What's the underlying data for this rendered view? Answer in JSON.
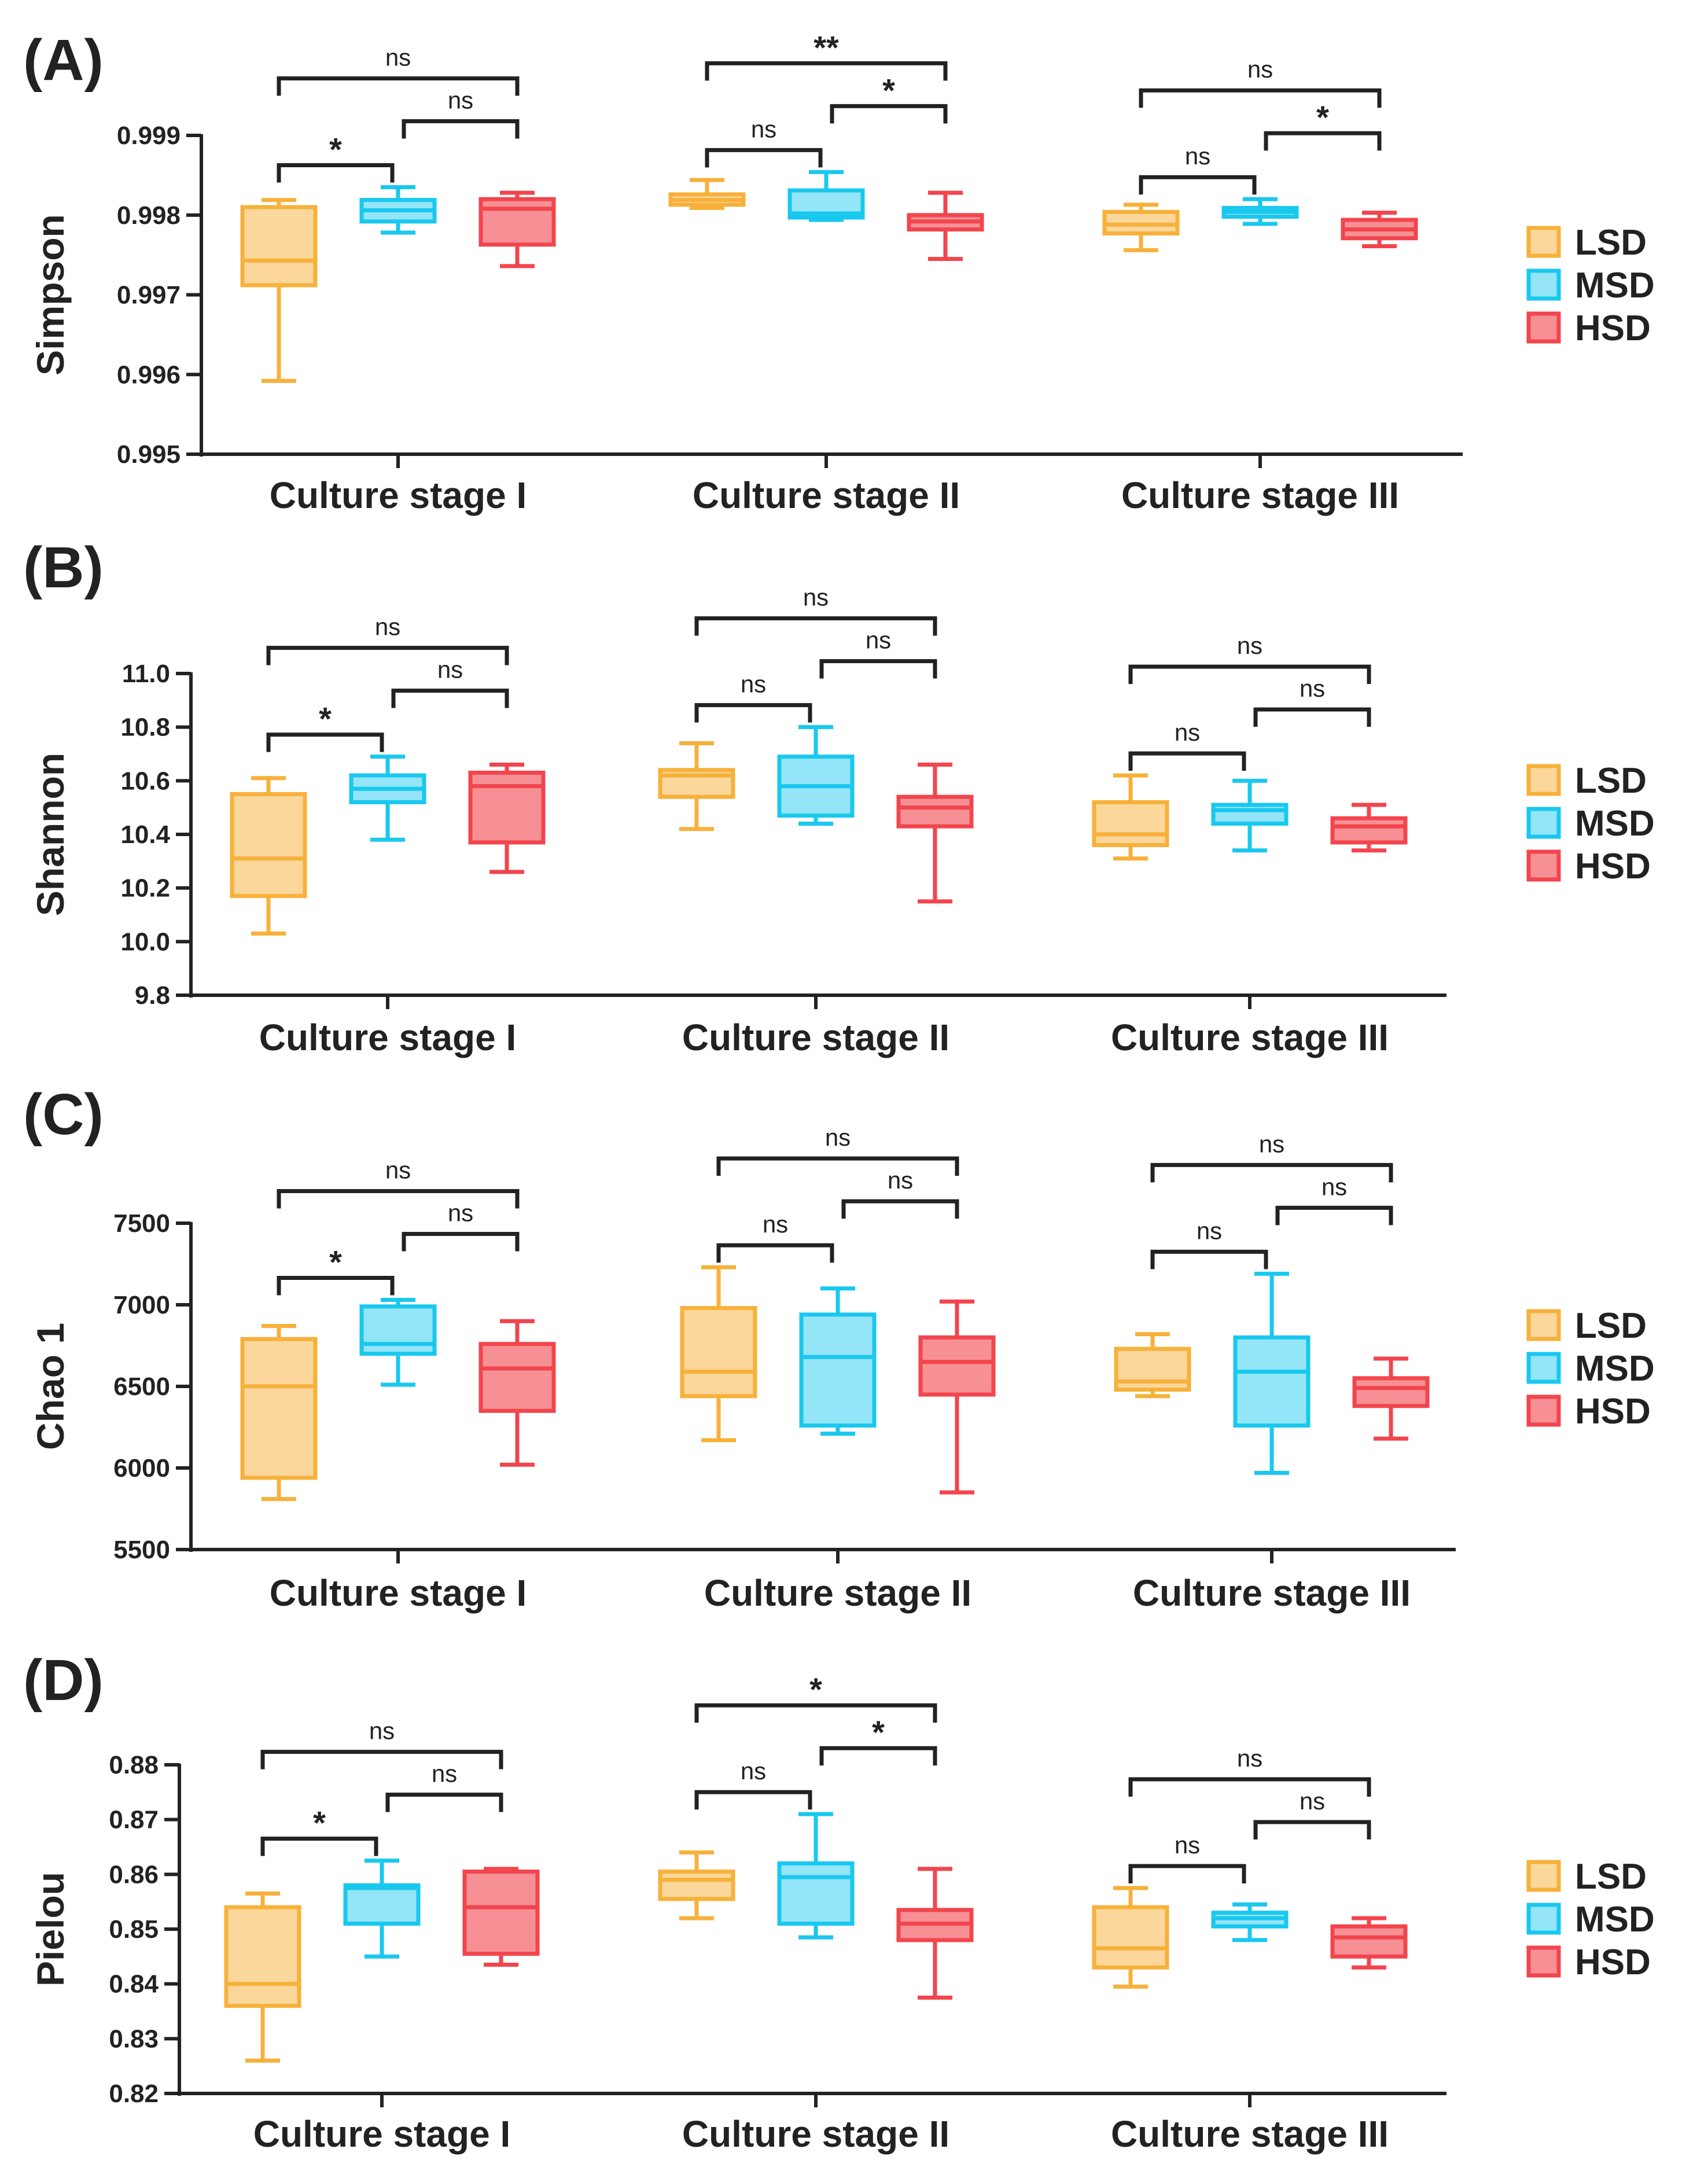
{
  "colors": {
    "LSD": {
      "stroke": "#f7b13a",
      "fill": "#fbd79b"
    },
    "MSD": {
      "stroke": "#19c8ee",
      "fill": "#93e5f7"
    },
    "HSD": {
      "stroke": "#f2454d",
      "fill": "#f79095"
    },
    "axis": "#222222"
  },
  "legend": [
    "LSD",
    "MSD",
    "HSD"
  ],
  "chart_data": [
    {
      "type": "box",
      "panel_label": "(A)",
      "ylabel": "Simpson",
      "ylim": [
        0.995,
        0.999
      ],
      "yticks": [
        0.995,
        0.996,
        0.997,
        0.998,
        0.999
      ],
      "ytick_labels": [
        "0.995",
        "0.996",
        "0.997",
        "0.998",
        "0.999"
      ],
      "categories": [
        "Culture stage I",
        "Culture stage II",
        "Culture stage III"
      ],
      "series": [
        {
          "name": "LSD",
          "boxes": [
            {
              "min": 0.99592,
              "q1": 0.99712,
              "median": 0.99743,
              "q3": 0.9981,
              "max": 0.99819
            },
            {
              "min": 0.99809,
              "q1": 0.99813,
              "median": 0.99819,
              "q3": 0.99826,
              "max": 0.99844
            },
            {
              "min": 0.99756,
              "q1": 0.99777,
              "median": 0.99788,
              "q3": 0.99804,
              "max": 0.99813
            }
          ]
        },
        {
          "name": "MSD",
          "boxes": [
            {
              "min": 0.99778,
              "q1": 0.99792,
              "median": 0.99806,
              "q3": 0.99819,
              "max": 0.99835
            },
            {
              "min": 0.99794,
              "q1": 0.99797,
              "median": 0.99802,
              "q3": 0.99831,
              "max": 0.99854
            },
            {
              "min": 0.99789,
              "q1": 0.99798,
              "median": 0.99804,
              "q3": 0.99809,
              "max": 0.9982
            }
          ]
        },
        {
          "name": "HSD",
          "boxes": [
            {
              "min": 0.99736,
              "q1": 0.99763,
              "median": 0.99808,
              "q3": 0.9982,
              "max": 0.99828
            },
            {
              "min": 0.99745,
              "q1": 0.99782,
              "median": 0.99792,
              "q3": 0.998,
              "max": 0.99828
            },
            {
              "min": 0.99761,
              "q1": 0.99771,
              "median": 0.99782,
              "q3": 0.99794,
              "max": 0.99803
            }
          ]
        }
      ],
      "brackets": [
        [
          {
            "from": 0,
            "to": 2,
            "label": "ns"
          },
          {
            "from": 1,
            "to": 2,
            "label": "ns"
          },
          {
            "from": 0,
            "to": 1,
            "label": "*"
          }
        ],
        [
          {
            "from": 0,
            "to": 2,
            "label": "**"
          },
          {
            "from": 1,
            "to": 2,
            "label": "*"
          },
          {
            "from": 0,
            "to": 1,
            "label": "ns"
          }
        ],
        [
          {
            "from": 0,
            "to": 2,
            "label": "ns"
          },
          {
            "from": 1,
            "to": 2,
            "label": "*"
          },
          {
            "from": 0,
            "to": 1,
            "label": "ns"
          }
        ]
      ]
    },
    {
      "type": "box",
      "panel_label": "(B)",
      "ylabel": "Shannon",
      "ylim": [
        9.8,
        11.0
      ],
      "yticks": [
        9.8,
        10.0,
        10.2,
        10.4,
        10.6,
        10.8,
        11.0
      ],
      "ytick_labels": [
        "9.8",
        "10.0",
        "10.2",
        "10.4",
        "10.6",
        "10.8",
        "11.0"
      ],
      "categories": [
        "Culture stage I",
        "Culture stage II",
        "Culture stage III"
      ],
      "series": [
        {
          "name": "LSD",
          "boxes": [
            {
              "min": 10.03,
              "q1": 10.17,
              "median": 10.31,
              "q3": 10.55,
              "max": 10.61
            },
            {
              "min": 10.42,
              "q1": 10.54,
              "median": 10.62,
              "q3": 10.64,
              "max": 10.74
            },
            {
              "min": 10.31,
              "q1": 10.36,
              "median": 10.4,
              "q3": 10.52,
              "max": 10.62
            }
          ]
        },
        {
          "name": "MSD",
          "boxes": [
            {
              "min": 10.38,
              "q1": 10.52,
              "median": 10.57,
              "q3": 10.62,
              "max": 10.69
            },
            {
              "min": 10.44,
              "q1": 10.47,
              "median": 10.58,
              "q3": 10.69,
              "max": 10.8
            },
            {
              "min": 10.34,
              "q1": 10.44,
              "median": 10.49,
              "q3": 10.51,
              "max": 10.6
            }
          ]
        },
        {
          "name": "HSD",
          "boxes": [
            {
              "min": 10.26,
              "q1": 10.37,
              "median": 10.58,
              "q3": 10.63,
              "max": 10.66
            },
            {
              "min": 10.15,
              "q1": 10.43,
              "median": 10.5,
              "q3": 10.54,
              "max": 10.66
            },
            {
              "min": 10.34,
              "q1": 10.37,
              "median": 10.43,
              "q3": 10.46,
              "max": 10.51
            }
          ]
        }
      ],
      "brackets": [
        [
          {
            "from": 0,
            "to": 2,
            "label": "ns"
          },
          {
            "from": 1,
            "to": 2,
            "label": "ns"
          },
          {
            "from": 0,
            "to": 1,
            "label": "*"
          }
        ],
        [
          {
            "from": 0,
            "to": 2,
            "label": "ns"
          },
          {
            "from": 1,
            "to": 2,
            "label": "ns"
          },
          {
            "from": 0,
            "to": 1,
            "label": "ns"
          }
        ],
        [
          {
            "from": 0,
            "to": 2,
            "label": "ns"
          },
          {
            "from": 1,
            "to": 2,
            "label": "ns"
          },
          {
            "from": 0,
            "to": 1,
            "label": "ns"
          }
        ]
      ]
    },
    {
      "type": "box",
      "panel_label": "(C)",
      "ylabel": "Chao 1",
      "ylim": [
        5500,
        7500
      ],
      "yticks": [
        5500,
        6000,
        6500,
        7000,
        7500
      ],
      "ytick_labels": [
        "5500",
        "6000",
        "6500",
        "7000",
        "7500"
      ],
      "categories": [
        "Culture stage I",
        "Culture stage II",
        "Culture stage III"
      ],
      "series": [
        {
          "name": "LSD",
          "boxes": [
            {
              "min": 5810,
              "q1": 5940,
              "median": 6500,
              "q3": 6790,
              "max": 6870
            },
            {
              "min": 6170,
              "q1": 6440,
              "median": 6590,
              "q3": 6980,
              "max": 7230
            },
            {
              "min": 6440,
              "q1": 6480,
              "median": 6530,
              "q3": 6730,
              "max": 6820
            }
          ]
        },
        {
          "name": "MSD",
          "boxes": [
            {
              "min": 6510,
              "q1": 6700,
              "median": 6760,
              "q3": 6990,
              "max": 7030
            },
            {
              "min": 6210,
              "q1": 6260,
              "median": 6680,
              "q3": 6940,
              "max": 7100
            },
            {
              "min": 5970,
              "q1": 6260,
              "median": 6590,
              "q3": 6800,
              "max": 7190
            }
          ]
        },
        {
          "name": "HSD",
          "boxes": [
            {
              "min": 6020,
              "q1": 6350,
              "median": 6610,
              "q3": 6760,
              "max": 6900
            },
            {
              "min": 5850,
              "q1": 6450,
              "median": 6650,
              "q3": 6800,
              "max": 7020
            },
            {
              "min": 6180,
              "q1": 6380,
              "median": 6490,
              "q3": 6550,
              "max": 6670
            }
          ]
        }
      ],
      "brackets": [
        [
          {
            "from": 0,
            "to": 2,
            "label": "ns"
          },
          {
            "from": 1,
            "to": 2,
            "label": "ns"
          },
          {
            "from": 0,
            "to": 1,
            "label": "*"
          }
        ],
        [
          {
            "from": 0,
            "to": 2,
            "label": "ns"
          },
          {
            "from": 1,
            "to": 2,
            "label": "ns"
          },
          {
            "from": 0,
            "to": 1,
            "label": "ns"
          }
        ],
        [
          {
            "from": 0,
            "to": 2,
            "label": "ns"
          },
          {
            "from": 1,
            "to": 2,
            "label": "ns"
          },
          {
            "from": 0,
            "to": 1,
            "label": "ns"
          }
        ]
      ]
    },
    {
      "type": "box",
      "panel_label": "(D)",
      "ylabel": "Pielou",
      "ylim": [
        0.82,
        0.88
      ],
      "yticks": [
        0.82,
        0.83,
        0.84,
        0.85,
        0.86,
        0.87,
        0.88
      ],
      "ytick_labels": [
        "0.82",
        "0.83",
        "0.84",
        "0.85",
        "0.86",
        "0.87",
        "0.88"
      ],
      "categories": [
        "Culture stage I",
        "Culture stage II",
        "Culture stage III"
      ],
      "series": [
        {
          "name": "LSD",
          "boxes": [
            {
              "min": 0.826,
              "q1": 0.836,
              "median": 0.84,
              "q3": 0.854,
              "max": 0.8565
            },
            {
              "min": 0.852,
              "q1": 0.8555,
              "median": 0.859,
              "q3": 0.8605,
              "max": 0.864
            },
            {
              "min": 0.8395,
              "q1": 0.843,
              "median": 0.8465,
              "q3": 0.854,
              "max": 0.8575
            }
          ]
        },
        {
          "name": "MSD",
          "boxes": [
            {
              "min": 0.845,
              "q1": 0.851,
              "median": 0.8575,
              "q3": 0.858,
              "max": 0.8625
            },
            {
              "min": 0.8485,
              "q1": 0.851,
              "median": 0.8595,
              "q3": 0.862,
              "max": 0.871
            },
            {
              "min": 0.848,
              "q1": 0.8505,
              "median": 0.852,
              "q3": 0.853,
              "max": 0.8545
            }
          ]
        },
        {
          "name": "HSD",
          "boxes": [
            {
              "min": 0.8435,
              "q1": 0.8455,
              "median": 0.854,
              "q3": 0.8605,
              "max": 0.861
            },
            {
              "min": 0.8375,
              "q1": 0.848,
              "median": 0.851,
              "q3": 0.8535,
              "max": 0.861
            },
            {
              "min": 0.843,
              "q1": 0.845,
              "median": 0.8485,
              "q3": 0.8505,
              "max": 0.852
            }
          ]
        }
      ],
      "brackets": [
        [
          {
            "from": 0,
            "to": 2,
            "label": "ns"
          },
          {
            "from": 1,
            "to": 2,
            "label": "ns"
          },
          {
            "from": 0,
            "to": 1,
            "label": "*"
          }
        ],
        [
          {
            "from": 0,
            "to": 2,
            "label": "*"
          },
          {
            "from": 1,
            "to": 2,
            "label": "*"
          },
          {
            "from": 0,
            "to": 1,
            "label": "ns"
          }
        ],
        [
          {
            "from": 0,
            "to": 2,
            "label": "ns"
          },
          {
            "from": 1,
            "to": 2,
            "label": "ns"
          },
          {
            "from": 0,
            "to": 1,
            "label": "ns"
          }
        ]
      ]
    }
  ]
}
